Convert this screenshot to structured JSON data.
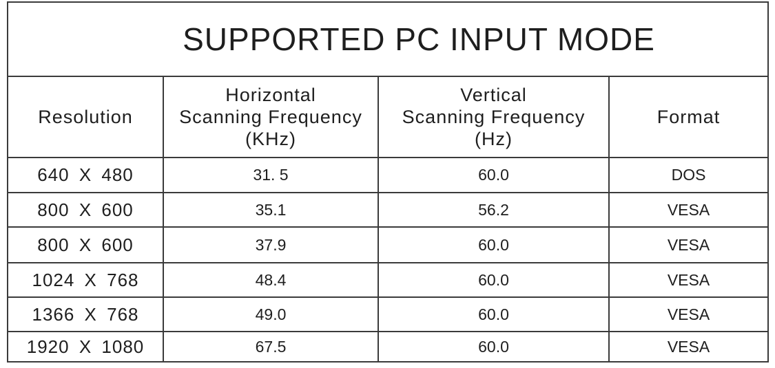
{
  "title": "SUPPORTED PC INPUT MODE",
  "headers": {
    "resolution": "Resolution",
    "horizontal_l1": "Horizontal",
    "horizontal_l2": "Scanning Frequency",
    "horizontal_l3": "(KHz)",
    "vertical_l1": "Vertical",
    "vertical_l2": "Scanning Frequency",
    "vertical_l3": "(Hz)",
    "format": "Format"
  },
  "rows": [
    {
      "resolution": "640 X 480",
      "horizontal": "31. 5",
      "vertical": "60.0",
      "format": "DOS"
    },
    {
      "resolution": "800 X 600",
      "horizontal": "35.1",
      "vertical": "56.2",
      "format": "VESA"
    },
    {
      "resolution": "800 X 600",
      "horizontal": "37.9",
      "vertical": "60.0",
      "format": "VESA"
    },
    {
      "resolution": "1024 X 768",
      "horizontal": "48.4",
      "vertical": "60.0",
      "format": "VESA"
    },
    {
      "resolution": "1366 X 768",
      "horizontal": "49.0",
      "vertical": "60.0",
      "format": "VESA"
    },
    {
      "resolution": "1920 X 1080",
      "horizontal": "67.5",
      "vertical": "60.0",
      "format": "VESA"
    }
  ]
}
